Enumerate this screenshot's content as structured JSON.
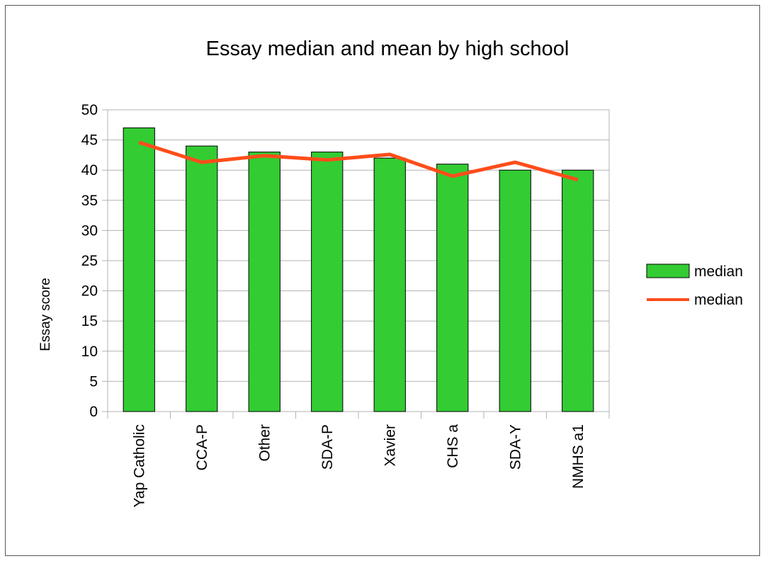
{
  "chart_data": {
    "type": "bar",
    "title": "Essay median and mean by high school",
    "xlabel": "",
    "ylabel": "Essay score",
    "ylim": [
      0,
      50
    ],
    "yticks": [
      0,
      5,
      10,
      15,
      20,
      25,
      30,
      35,
      40,
      45,
      50
    ],
    "grid": true,
    "legend_position": "right",
    "categories": [
      "Yap Catholic",
      "CCA-P",
      "Other",
      "SDA-P",
      "Xavier",
      "CHS a",
      "SDA-Y",
      "NMHS a1"
    ],
    "series": [
      {
        "name": "median",
        "type": "bar",
        "color": "#33cc33",
        "values": [
          47,
          44,
          43,
          43,
          42,
          41,
          40,
          40
        ]
      },
      {
        "name": "median",
        "type": "line",
        "color": "#ff4d1a",
        "values": [
          44.6,
          41.3,
          42.4,
          41.7,
          42.6,
          39.0,
          41.3,
          38.4
        ]
      }
    ]
  }
}
